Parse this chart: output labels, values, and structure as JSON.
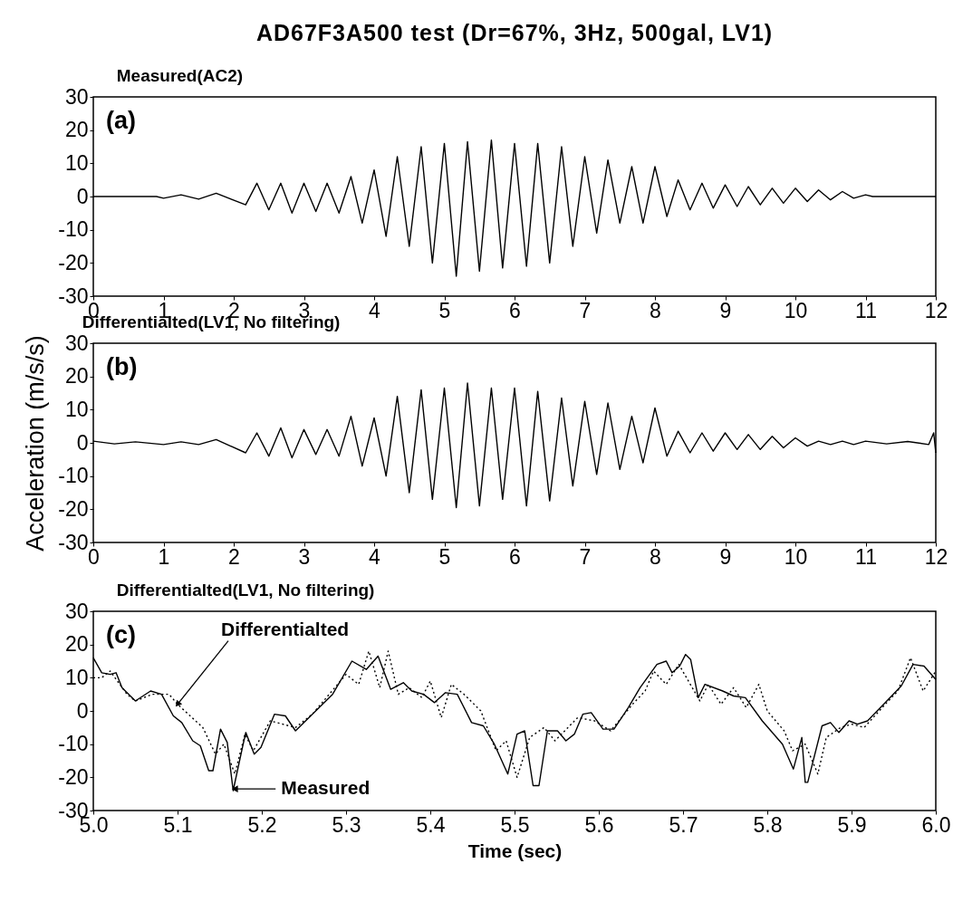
{
  "chart_data": [
    {
      "type": "line",
      "title": "AD67F3A500 test (Dr=67%, 3Hz, 500gal, LV1)",
      "subtitle": "Measured(AC2)",
      "annotations": [
        "(a)"
      ],
      "xlim": [
        0,
        12
      ],
      "xticks": [
        0,
        1,
        2,
        3,
        4,
        5,
        6,
        7,
        8,
        9,
        10,
        11,
        12
      ],
      "ylim": [
        -30,
        30
      ],
      "yticks": [
        -30,
        -20,
        -10,
        0,
        10,
        20,
        30
      ],
      "series": [
        {
          "color": "#000000",
          "line_style": "solid",
          "x": [
            0,
            0.9,
            1.0,
            1.25,
            1.5,
            1.75,
            2.17,
            2.33,
            2.5,
            2.67,
            2.83,
            3.0,
            3.17,
            3.33,
            3.5,
            3.67,
            3.83,
            4.0,
            4.17,
            4.33,
            4.5,
            4.67,
            4.83,
            5.0,
            5.17,
            5.33,
            5.5,
            5.67,
            5.83,
            6.0,
            6.17,
            6.33,
            6.5,
            6.67,
            6.83,
            7.0,
            7.17,
            7.33,
            7.5,
            7.67,
            7.83,
            8.0,
            8.17,
            8.33,
            8.5,
            8.67,
            8.83,
            9.0,
            9.17,
            9.33,
            9.5,
            9.67,
            9.83,
            10.0,
            10.17,
            10.33,
            10.5,
            10.67,
            10.83,
            11.0,
            11.1,
            12
          ],
          "values": [
            0,
            0,
            -0.5,
            0.5,
            -0.8,
            1,
            -2.5,
            4,
            -4,
            4,
            -5,
            4,
            -4.5,
            4,
            -5,
            6,
            -8,
            8,
            -12,
            12,
            -15,
            15,
            -20,
            16,
            -24,
            16.5,
            -22.5,
            17,
            -21.5,
            16,
            -21,
            16,
            -20,
            15,
            -15,
            12,
            -11,
            11,
            -8,
            9,
            -8,
            9,
            -6,
            5,
            -4,
            4,
            -3.5,
            3.5,
            -3,
            3,
            -2.5,
            2.5,
            -2,
            2.5,
            -1.5,
            2,
            -1,
            1.5,
            -0.5,
            0.5,
            0,
            0
          ]
        }
      ]
    },
    {
      "type": "line",
      "title": "Differentialted(LV1, No filtering)",
      "ylabel": "Acceleration (m/s/s)",
      "annotations": [
        "(b)"
      ],
      "xlim": [
        0,
        12
      ],
      "xticks": [
        0,
        1,
        2,
        3,
        4,
        5,
        6,
        7,
        8,
        9,
        10,
        11,
        12
      ],
      "ylim": [
        -30,
        30
      ],
      "yticks": [
        -30,
        -20,
        -10,
        0,
        10,
        20,
        30
      ],
      "series": [
        {
          "color": "#000000",
          "line_style": "solid",
          "x": [
            0,
            0.3,
            0.6,
            1.0,
            1.25,
            1.5,
            1.75,
            2.17,
            2.33,
            2.5,
            2.67,
            2.83,
            3.0,
            3.17,
            3.33,
            3.5,
            3.67,
            3.83,
            4.0,
            4.17,
            4.33,
            4.5,
            4.67,
            4.83,
            5.0,
            5.17,
            5.33,
            5.5,
            5.67,
            5.83,
            6.0,
            6.17,
            6.33,
            6.5,
            6.67,
            6.83,
            7.0,
            7.17,
            7.33,
            7.5,
            7.67,
            7.83,
            8.0,
            8.17,
            8.33,
            8.5,
            8.67,
            8.83,
            9.0,
            9.17,
            9.33,
            9.5,
            9.67,
            9.83,
            10.0,
            10.17,
            10.33,
            10.5,
            10.67,
            10.83,
            11.0,
            11.3,
            11.6,
            11.9,
            11.97,
            12
          ],
          "values": [
            0.5,
            -0.3,
            0.3,
            -0.5,
            0.3,
            -0.5,
            1,
            -3,
            3,
            -4,
            4.5,
            -4.5,
            4,
            -3.5,
            4,
            -4,
            8,
            -7,
            7.5,
            -10,
            14,
            -15,
            16,
            -17,
            16.5,
            -19.5,
            18,
            -19,
            16.5,
            -17,
            16.5,
            -19,
            15.5,
            -17.5,
            13.5,
            -13,
            12.5,
            -9.5,
            12,
            -8,
            8,
            -6,
            10.5,
            -4,
            3.5,
            -3,
            3,
            -2.5,
            3,
            -2,
            2.5,
            -2,
            2,
            -1.5,
            1.5,
            -1,
            0.5,
            -0.5,
            0.5,
            -0.5,
            0.5,
            -0.3,
            0.4,
            -0.5,
            3,
            -3
          ]
        }
      ]
    },
    {
      "type": "line",
      "title": "Differentialted(LV1, No filtering)",
      "xlabel": "Time (sec)",
      "annotations": [
        "(c)",
        {
          "text": "Differentialted",
          "x": 5.1,
          "y": 2
        },
        {
          "text": "Measured",
          "x": 5.168,
          "y": -23.5
        }
      ],
      "xlim": [
        5,
        6
      ],
      "xticks": [
        {
          "value": 5,
          "label": "5.0"
        },
        5.1,
        5.2,
        5.3,
        5.4,
        5.5,
        5.6,
        5.7,
        5.8,
        5.9,
        {
          "value": 6,
          "label": "6.0"
        }
      ],
      "ylim": [
        -30,
        30
      ],
      "yticks": [
        -30,
        -20,
        -10,
        0,
        10,
        20,
        30
      ],
      "series": [
        {
          "color": "#000000",
          "line_style": "solid",
          "x": [
            5.0,
            5.01,
            5.02,
            5.027,
            5.034,
            5.05,
            5.068,
            5.081,
            5.095,
            5.105,
            5.118,
            5.127,
            5.137,
            5.142,
            5.151,
            5.159,
            5.166,
            5.177,
            5.181,
            5.191,
            5.199,
            5.215,
            5.228,
            5.24,
            5.264,
            5.284,
            5.307,
            5.324,
            5.338,
            5.353,
            5.368,
            5.378,
            5.392,
            5.405,
            5.418,
            5.432,
            5.449,
            5.463,
            5.476,
            5.492,
            5.503,
            5.512,
            5.522,
            5.529,
            5.539,
            5.551,
            5.561,
            5.571,
            5.581,
            5.591,
            5.605,
            5.618,
            5.635,
            5.649,
            5.669,
            5.68,
            5.687,
            5.696,
            5.703,
            5.709,
            5.718,
            5.726,
            5.747,
            5.76,
            5.774,
            5.794,
            5.818,
            5.831,
            5.841,
            5.845,
            5.848,
            5.865,
            5.875,
            5.885,
            5.897,
            5.907,
            5.919,
            5.938,
            5.959,
            5.973,
            5.986,
            6.0
          ],
          "values": [
            16,
            11.5,
            11,
            11.5,
            7,
            3,
            6,
            5,
            -1.5,
            -3.5,
            -9,
            -10.5,
            -18,
            -18,
            -5.5,
            -9.5,
            -24,
            -11,
            -6.5,
            -13,
            -11,
            -1,
            -1.5,
            -6,
            0,
            5,
            15,
            12.5,
            16.5,
            6.5,
            8.5,
            6,
            5,
            2.5,
            5.5,
            5,
            -3.5,
            -4.5,
            -10,
            -19,
            -7,
            -6,
            -22.5,
            -22.5,
            -6,
            -6,
            -9,
            -7,
            -1,
            -0.5,
            -5.5,
            -5.5,
            1,
            7,
            14,
            15,
            11.5,
            13.5,
            17,
            15.5,
            4,
            8,
            6,
            4.5,
            4,
            -3,
            -10,
            -17.5,
            -8,
            -21.5,
            -21.5,
            -4.5,
            -3.5,
            -6.5,
            -3,
            -4,
            -3,
            2,
            7.5,
            14,
            13.5,
            9.5
          ]
        },
        {
          "color": "#000000",
          "line_style": "dotted",
          "x": [
            5.0,
            5.01,
            5.02,
            5.04,
            5.05,
            5.07,
            5.09,
            5.1,
            5.13,
            5.145,
            5.155,
            5.168,
            5.18,
            5.19,
            5.21,
            5.24,
            5.26,
            5.29,
            5.3,
            5.315,
            5.327,
            5.34,
            5.35,
            5.362,
            5.375,
            5.39,
            5.4,
            5.413,
            5.425,
            5.44,
            5.46,
            5.478,
            5.49,
            5.503,
            5.518,
            5.535,
            5.548,
            5.575,
            5.595,
            5.614,
            5.64,
            5.655,
            5.665,
            5.68,
            5.695,
            5.72,
            5.73,
            5.745,
            5.76,
            5.775,
            5.79,
            5.8,
            5.82,
            5.83,
            5.845,
            5.86,
            5.87,
            5.887,
            5.9,
            5.915,
            5.94,
            5.955,
            5.97,
            5.985,
            6.0
          ],
          "values": [
            10,
            10,
            12,
            5,
            3,
            5,
            5,
            2,
            -5,
            -13,
            -10,
            -19,
            -7,
            -12,
            -3,
            -5,
            -1,
            8,
            11,
            8,
            18,
            7,
            18,
            5,
            7,
            4,
            9,
            -2,
            8,
            5,
            0,
            -12,
            -9,
            -20,
            -8,
            -5,
            -9,
            -2,
            -3,
            -6,
            2,
            6,
            12,
            8,
            14,
            3,
            8,
            2,
            7,
            1,
            8,
            0,
            -6,
            -12,
            -10,
            -19,
            -8,
            -5,
            -4,
            -5,
            2,
            6,
            16,
            6,
            12
          ]
        }
      ]
    }
  ]
}
